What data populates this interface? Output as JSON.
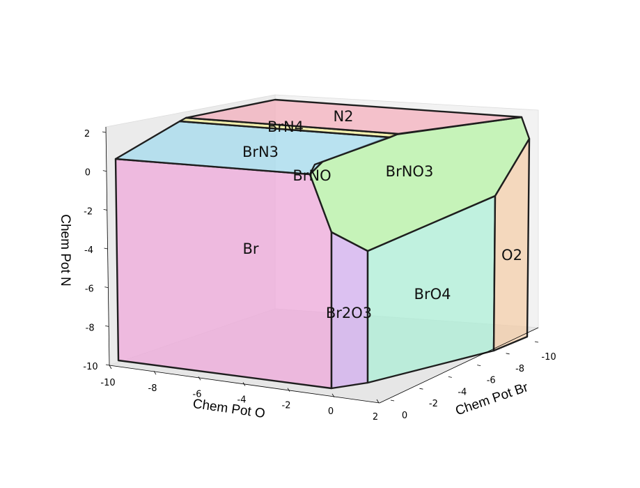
{
  "chart_data": {
    "type": "3d-polyhedral-phase-diagram",
    "axes": {
      "x": {
        "label": "Chem Pot O",
        "ticks": [
          "-10",
          "-8",
          "-6",
          "-4",
          "-2",
          "0",
          "2"
        ]
      },
      "y": {
        "label": "Chem Pot Br",
        "ticks": [
          "-10",
          "-8",
          "-6",
          "-4",
          "-2",
          "0"
        ]
      },
      "z": {
        "label": "Chem Pot N",
        "ticks": [
          "2",
          "0",
          "-2",
          "-4",
          "-6",
          "-8",
          "-10"
        ]
      }
    },
    "xlim": [
      -10,
      2
    ],
    "ylim": [
      -10,
      0
    ],
    "zlim": [
      -10,
      2
    ],
    "regions": [
      {
        "name": "N2",
        "color": "#f4a6b6"
      },
      {
        "name": "BrN4",
        "color": "#f5f08a"
      },
      {
        "name": "BrN3",
        "color": "#9ad8ee"
      },
      {
        "name": "BrNO",
        "color": "#b2e8f8"
      },
      {
        "name": "BrNO3",
        "color": "#aef29a"
      },
      {
        "name": "Br",
        "color": "#ef9fd8"
      },
      {
        "name": "Br2O3",
        "color": "#cfa6ef"
      },
      {
        "name": "BrO4",
        "color": "#a4f0d4"
      },
      {
        "name": "O2",
        "color": "#f5c9a0"
      }
    ],
    "grid": false
  }
}
